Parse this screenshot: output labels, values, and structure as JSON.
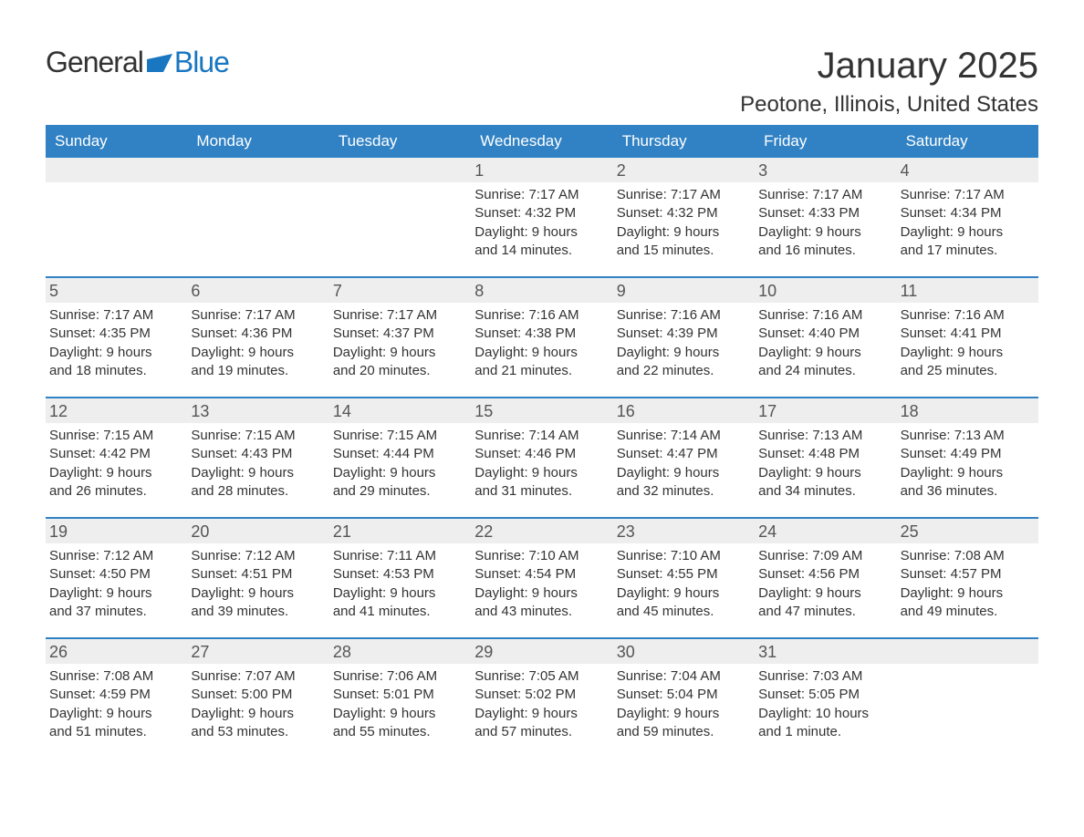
{
  "logo": {
    "text1": "General",
    "text2": "Blue"
  },
  "title": "January 2025",
  "location": "Peotone, Illinois, United States",
  "colors": {
    "header_bg": "#3182c4",
    "header_text": "#ffffff",
    "daynum_bg": "#eeeeee",
    "text": "#333333",
    "accent": "#1976c0"
  },
  "day_headers": [
    "Sunday",
    "Monday",
    "Tuesday",
    "Wednesday",
    "Thursday",
    "Friday",
    "Saturday"
  ],
  "weeks": [
    [
      null,
      null,
      null,
      {
        "d": "1",
        "sr": "Sunrise: 7:17 AM",
        "ss": "Sunset: 4:32 PM",
        "dl1": "Daylight: 9 hours",
        "dl2": "and 14 minutes."
      },
      {
        "d": "2",
        "sr": "Sunrise: 7:17 AM",
        "ss": "Sunset: 4:32 PM",
        "dl1": "Daylight: 9 hours",
        "dl2": "and 15 minutes."
      },
      {
        "d": "3",
        "sr": "Sunrise: 7:17 AM",
        "ss": "Sunset: 4:33 PM",
        "dl1": "Daylight: 9 hours",
        "dl2": "and 16 minutes."
      },
      {
        "d": "4",
        "sr": "Sunrise: 7:17 AM",
        "ss": "Sunset: 4:34 PM",
        "dl1": "Daylight: 9 hours",
        "dl2": "and 17 minutes."
      }
    ],
    [
      {
        "d": "5",
        "sr": "Sunrise: 7:17 AM",
        "ss": "Sunset: 4:35 PM",
        "dl1": "Daylight: 9 hours",
        "dl2": "and 18 minutes."
      },
      {
        "d": "6",
        "sr": "Sunrise: 7:17 AM",
        "ss": "Sunset: 4:36 PM",
        "dl1": "Daylight: 9 hours",
        "dl2": "and 19 minutes."
      },
      {
        "d": "7",
        "sr": "Sunrise: 7:17 AM",
        "ss": "Sunset: 4:37 PM",
        "dl1": "Daylight: 9 hours",
        "dl2": "and 20 minutes."
      },
      {
        "d": "8",
        "sr": "Sunrise: 7:16 AM",
        "ss": "Sunset: 4:38 PM",
        "dl1": "Daylight: 9 hours",
        "dl2": "and 21 minutes."
      },
      {
        "d": "9",
        "sr": "Sunrise: 7:16 AM",
        "ss": "Sunset: 4:39 PM",
        "dl1": "Daylight: 9 hours",
        "dl2": "and 22 minutes."
      },
      {
        "d": "10",
        "sr": "Sunrise: 7:16 AM",
        "ss": "Sunset: 4:40 PM",
        "dl1": "Daylight: 9 hours",
        "dl2": "and 24 minutes."
      },
      {
        "d": "11",
        "sr": "Sunrise: 7:16 AM",
        "ss": "Sunset: 4:41 PM",
        "dl1": "Daylight: 9 hours",
        "dl2": "and 25 minutes."
      }
    ],
    [
      {
        "d": "12",
        "sr": "Sunrise: 7:15 AM",
        "ss": "Sunset: 4:42 PM",
        "dl1": "Daylight: 9 hours",
        "dl2": "and 26 minutes."
      },
      {
        "d": "13",
        "sr": "Sunrise: 7:15 AM",
        "ss": "Sunset: 4:43 PM",
        "dl1": "Daylight: 9 hours",
        "dl2": "and 28 minutes."
      },
      {
        "d": "14",
        "sr": "Sunrise: 7:15 AM",
        "ss": "Sunset: 4:44 PM",
        "dl1": "Daylight: 9 hours",
        "dl2": "and 29 minutes."
      },
      {
        "d": "15",
        "sr": "Sunrise: 7:14 AM",
        "ss": "Sunset: 4:46 PM",
        "dl1": "Daylight: 9 hours",
        "dl2": "and 31 minutes."
      },
      {
        "d": "16",
        "sr": "Sunrise: 7:14 AM",
        "ss": "Sunset: 4:47 PM",
        "dl1": "Daylight: 9 hours",
        "dl2": "and 32 minutes."
      },
      {
        "d": "17",
        "sr": "Sunrise: 7:13 AM",
        "ss": "Sunset: 4:48 PM",
        "dl1": "Daylight: 9 hours",
        "dl2": "and 34 minutes."
      },
      {
        "d": "18",
        "sr": "Sunrise: 7:13 AM",
        "ss": "Sunset: 4:49 PM",
        "dl1": "Daylight: 9 hours",
        "dl2": "and 36 minutes."
      }
    ],
    [
      {
        "d": "19",
        "sr": "Sunrise: 7:12 AM",
        "ss": "Sunset: 4:50 PM",
        "dl1": "Daylight: 9 hours",
        "dl2": "and 37 minutes."
      },
      {
        "d": "20",
        "sr": "Sunrise: 7:12 AM",
        "ss": "Sunset: 4:51 PM",
        "dl1": "Daylight: 9 hours",
        "dl2": "and 39 minutes."
      },
      {
        "d": "21",
        "sr": "Sunrise: 7:11 AM",
        "ss": "Sunset: 4:53 PM",
        "dl1": "Daylight: 9 hours",
        "dl2": "and 41 minutes."
      },
      {
        "d": "22",
        "sr": "Sunrise: 7:10 AM",
        "ss": "Sunset: 4:54 PM",
        "dl1": "Daylight: 9 hours",
        "dl2": "and 43 minutes."
      },
      {
        "d": "23",
        "sr": "Sunrise: 7:10 AM",
        "ss": "Sunset: 4:55 PM",
        "dl1": "Daylight: 9 hours",
        "dl2": "and 45 minutes."
      },
      {
        "d": "24",
        "sr": "Sunrise: 7:09 AM",
        "ss": "Sunset: 4:56 PM",
        "dl1": "Daylight: 9 hours",
        "dl2": "and 47 minutes."
      },
      {
        "d": "25",
        "sr": "Sunrise: 7:08 AM",
        "ss": "Sunset: 4:57 PM",
        "dl1": "Daylight: 9 hours",
        "dl2": "and 49 minutes."
      }
    ],
    [
      {
        "d": "26",
        "sr": "Sunrise: 7:08 AM",
        "ss": "Sunset: 4:59 PM",
        "dl1": "Daylight: 9 hours",
        "dl2": "and 51 minutes."
      },
      {
        "d": "27",
        "sr": "Sunrise: 7:07 AM",
        "ss": "Sunset: 5:00 PM",
        "dl1": "Daylight: 9 hours",
        "dl2": "and 53 minutes."
      },
      {
        "d": "28",
        "sr": "Sunrise: 7:06 AM",
        "ss": "Sunset: 5:01 PM",
        "dl1": "Daylight: 9 hours",
        "dl2": "and 55 minutes."
      },
      {
        "d": "29",
        "sr": "Sunrise: 7:05 AM",
        "ss": "Sunset: 5:02 PM",
        "dl1": "Daylight: 9 hours",
        "dl2": "and 57 minutes."
      },
      {
        "d": "30",
        "sr": "Sunrise: 7:04 AM",
        "ss": "Sunset: 5:04 PM",
        "dl1": "Daylight: 9 hours",
        "dl2": "and 59 minutes."
      },
      {
        "d": "31",
        "sr": "Sunrise: 7:03 AM",
        "ss": "Sunset: 5:05 PM",
        "dl1": "Daylight: 10 hours",
        "dl2": "and 1 minute."
      },
      null
    ]
  ]
}
